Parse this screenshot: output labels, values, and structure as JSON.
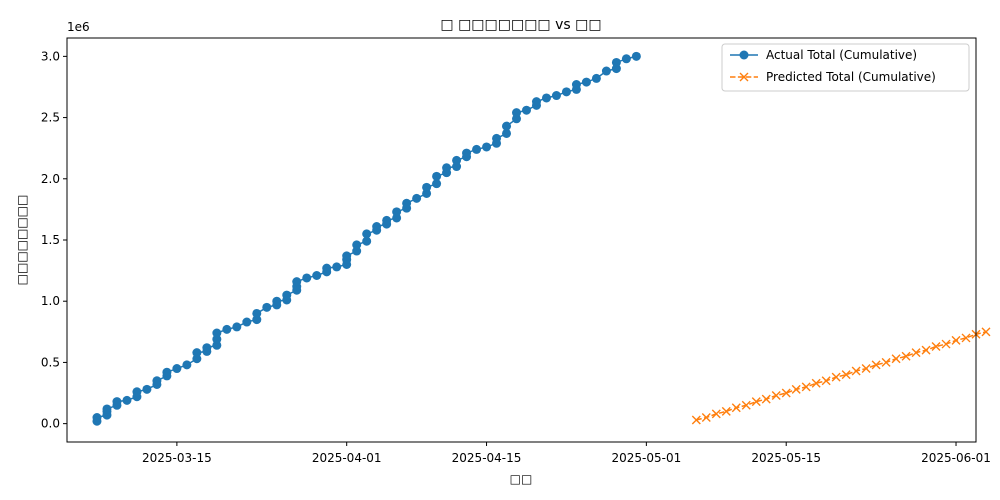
{
  "chart_data": {
    "type": "line",
    "title": "□ □□□□□□□ vs □□",
    "xlabel": "□□",
    "ylabel": "□□□□□□□□",
    "y_multiplier_label": "1e6",
    "xlim": [
      "2025-03-04",
      "2025-06-03"
    ],
    "ylim": [
      -0.15,
      3.15
    ],
    "x_ticks": [
      "2025-03-15",
      "2025-04-01",
      "2025-04-15",
      "2025-05-01",
      "2025-05-15",
      "2025-06-01"
    ],
    "y_ticks": [
      "0.0",
      "0.5",
      "1.0",
      "1.5",
      "2.0",
      "2.5",
      "3.0"
    ],
    "grid": false,
    "legend_position": "top-right",
    "series": [
      {
        "name": "Actual Total (Cumulative)",
        "color": "#1f77b4",
        "marker": "circle",
        "linestyle": "solid",
        "points": [
          [
            "2025-03-07",
            0.02
          ],
          [
            "2025-03-07",
            0.05
          ],
          [
            "2025-03-08",
            0.07
          ],
          [
            "2025-03-08",
            0.1
          ],
          [
            "2025-03-08",
            0.12
          ],
          [
            "2025-03-09",
            0.15
          ],
          [
            "2025-03-09",
            0.18
          ],
          [
            "2025-03-10",
            0.19
          ],
          [
            "2025-03-11",
            0.22
          ],
          [
            "2025-03-11",
            0.26
          ],
          [
            "2025-03-12",
            0.28
          ],
          [
            "2025-03-13",
            0.32
          ],
          [
            "2025-03-13",
            0.35
          ],
          [
            "2025-03-14",
            0.39
          ],
          [
            "2025-03-14",
            0.42
          ],
          [
            "2025-03-15",
            0.45
          ],
          [
            "2025-03-16",
            0.48
          ],
          [
            "2025-03-17",
            0.53
          ],
          [
            "2025-03-17",
            0.58
          ],
          [
            "2025-03-18",
            0.59
          ],
          [
            "2025-03-18",
            0.62
          ],
          [
            "2025-03-19",
            0.64
          ],
          [
            "2025-03-19",
            0.69
          ],
          [
            "2025-03-19",
            0.74
          ],
          [
            "2025-03-20",
            0.77
          ],
          [
            "2025-03-21",
            0.79
          ],
          [
            "2025-03-22",
            0.83
          ],
          [
            "2025-03-23",
            0.85
          ],
          [
            "2025-03-23",
            0.9
          ],
          [
            "2025-03-24",
            0.95
          ],
          [
            "2025-03-25",
            0.97
          ],
          [
            "2025-03-25",
            1.0
          ],
          [
            "2025-03-26",
            1.01
          ],
          [
            "2025-03-26",
            1.05
          ],
          [
            "2025-03-27",
            1.09
          ],
          [
            "2025-03-27",
            1.12
          ],
          [
            "2025-03-27",
            1.16
          ],
          [
            "2025-03-28",
            1.19
          ],
          [
            "2025-03-29",
            1.21
          ],
          [
            "2025-03-30",
            1.24
          ],
          [
            "2025-03-30",
            1.27
          ],
          [
            "2025-03-31",
            1.28
          ],
          [
            "2025-04-01",
            1.3
          ],
          [
            "2025-04-01",
            1.34
          ],
          [
            "2025-04-01",
            1.37
          ],
          [
            "2025-04-02",
            1.41
          ],
          [
            "2025-04-02",
            1.46
          ],
          [
            "2025-04-03",
            1.49
          ],
          [
            "2025-04-03",
            1.55
          ],
          [
            "2025-04-04",
            1.58
          ],
          [
            "2025-04-04",
            1.61
          ],
          [
            "2025-04-05",
            1.63
          ],
          [
            "2025-04-05",
            1.66
          ],
          [
            "2025-04-06",
            1.68
          ],
          [
            "2025-04-06",
            1.73
          ],
          [
            "2025-04-07",
            1.76
          ],
          [
            "2025-04-07",
            1.8
          ],
          [
            "2025-04-08",
            1.84
          ],
          [
            "2025-04-09",
            1.88
          ],
          [
            "2025-04-09",
            1.93
          ],
          [
            "2025-04-10",
            1.96
          ],
          [
            "2025-04-10",
            2.02
          ],
          [
            "2025-04-11",
            2.05
          ],
          [
            "2025-04-11",
            2.09
          ],
          [
            "2025-04-12",
            2.1
          ],
          [
            "2025-04-12",
            2.15
          ],
          [
            "2025-04-13",
            2.18
          ],
          [
            "2025-04-13",
            2.21
          ],
          [
            "2025-04-14",
            2.24
          ],
          [
            "2025-04-15",
            2.26
          ],
          [
            "2025-04-16",
            2.29
          ],
          [
            "2025-04-16",
            2.33
          ],
          [
            "2025-04-17",
            2.37
          ],
          [
            "2025-04-17",
            2.43
          ],
          [
            "2025-04-18",
            2.49
          ],
          [
            "2025-04-18",
            2.54
          ],
          [
            "2025-04-19",
            2.56
          ],
          [
            "2025-04-20",
            2.6
          ],
          [
            "2025-04-20",
            2.63
          ],
          [
            "2025-04-21",
            2.66
          ],
          [
            "2025-04-22",
            2.68
          ],
          [
            "2025-04-23",
            2.71
          ],
          [
            "2025-04-24",
            2.73
          ],
          [
            "2025-04-24",
            2.77
          ],
          [
            "2025-04-25",
            2.79
          ],
          [
            "2025-04-26",
            2.82
          ],
          [
            "2025-04-27",
            2.88
          ],
          [
            "2025-04-28",
            2.9
          ],
          [
            "2025-04-28",
            2.95
          ],
          [
            "2025-04-29",
            2.98
          ],
          [
            "2025-04-30",
            3.0
          ]
        ]
      },
      {
        "name": "Predicted Total (Cumulative)",
        "color": "#ff7f0e",
        "marker": "x",
        "linestyle": "dashed",
        "points": [
          [
            "2025-05-06",
            0.03
          ],
          [
            "2025-05-07",
            0.05
          ],
          [
            "2025-05-08",
            0.08
          ],
          [
            "2025-05-09",
            0.1
          ],
          [
            "2025-05-10",
            0.13
          ],
          [
            "2025-05-11",
            0.15
          ],
          [
            "2025-05-12",
            0.18
          ],
          [
            "2025-05-13",
            0.2
          ],
          [
            "2025-05-14",
            0.23
          ],
          [
            "2025-05-15",
            0.25
          ],
          [
            "2025-05-16",
            0.28
          ],
          [
            "2025-05-17",
            0.3
          ],
          [
            "2025-05-18",
            0.33
          ],
          [
            "2025-05-19",
            0.35
          ],
          [
            "2025-05-20",
            0.38
          ],
          [
            "2025-05-21",
            0.4
          ],
          [
            "2025-05-22",
            0.43
          ],
          [
            "2025-05-23",
            0.45
          ],
          [
            "2025-05-24",
            0.48
          ],
          [
            "2025-05-25",
            0.5
          ],
          [
            "2025-05-26",
            0.53
          ],
          [
            "2025-05-27",
            0.55
          ],
          [
            "2025-05-28",
            0.58
          ],
          [
            "2025-05-29",
            0.6
          ],
          [
            "2025-05-30",
            0.63
          ],
          [
            "2025-05-31",
            0.65
          ],
          [
            "2025-06-01",
            0.68
          ],
          [
            "2025-06-02",
            0.7
          ],
          [
            "2025-06-03",
            0.73
          ],
          [
            "2025-06-04",
            0.75
          ]
        ]
      }
    ]
  }
}
